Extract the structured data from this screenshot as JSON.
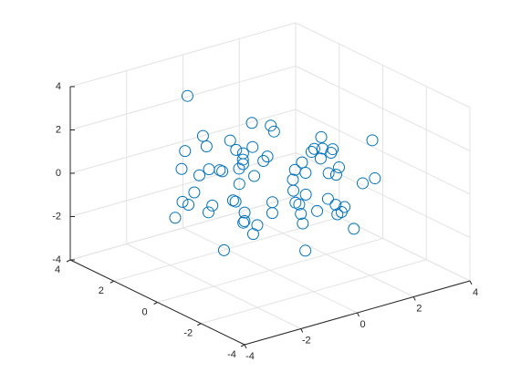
{
  "chart_data": {
    "type": "scatter3d",
    "color": "#0072bd",
    "grid": true,
    "x": [
      0.5,
      -1.2,
      1.8,
      -0.3,
      0.9,
      -2.1,
      0.2,
      1.4,
      -0.8,
      2.6,
      -1.7,
      0.0,
      1.1,
      -0.5,
      -2.8,
      0.7,
      1.9,
      -1.0,
      0.3,
      -0.2,
      2.2,
      -1.4,
      0.6,
      -2.4,
      1.3,
      -0.7,
      0.1,
      3.1,
      -1.9,
      0.8,
      -0.1,
      1.6,
      -1.1,
      2.9,
      -0.4,
      0.4,
      -2.6,
      1.0,
      -0.9,
      1.5,
      -1.5,
      0.2,
      2.4,
      -0.6,
      -3.0,
      1.2,
      -0.2,
      0.7,
      -1.3,
      2.0,
      -0.8,
      0.3,
      1.7,
      -2.2,
      0.5,
      -0.3,
      1.0,
      -1.6,
      2.7,
      -0.1,
      0.9,
      -1.8,
      0.4,
      1.3,
      -0.6,
      -2.0,
      1.8,
      -1.0,
      0.0,
      2.3
    ],
    "y": [
      -0.4,
      1.1,
      0.3,
      -1.8,
      2.0,
      -0.6,
      1.5,
      -1.2,
      0.8,
      0.2,
      -2.3,
      1.7,
      -0.9,
      2.6,
      0.4,
      -1.5,
      -0.2,
      0.9,
      -2.7,
      1.3,
      -1.0,
      0.5,
      2.2,
      -0.3,
      -1.6,
      3.0,
      0.1,
      -0.8,
      1.9,
      -2.0,
      0.6,
      1.0,
      -1.3,
      -0.5,
      2.4,
      -1.1,
      0.7,
      1.6,
      -2.5,
      0.3,
      -0.7,
      -1.9,
      1.2,
      0.0,
      -0.4,
      2.8,
      -1.4,
      0.8,
      1.4,
      -0.1,
      -2.2,
      1.8,
      -0.6,
      0.9,
      -1.7,
      0.2,
      2.1,
      -0.9,
      -1.2,
      1.1,
      -0.3,
      0.5,
      -2.9,
      1.5,
      0.4,
      -1.0,
      0.7,
      2.5,
      -1.5,
      0.1
    ],
    "z": [
      0.2,
      -1.1,
      0.8,
      -0.4,
      1.5,
      -2.0,
      0.6,
      -0.9,
      1.9,
      -0.3,
      0.4,
      -1.6,
      1.2,
      -0.7,
      0.0,
      2.1,
      -1.3,
      0.5,
      -0.2,
      1.0,
      -2.4,
      0.9,
      -0.6,
      1.7,
      -1.0,
      0.3,
      2.6,
      -0.5,
      -1.8,
      1.1,
      0.1,
      -1.4,
      2.3,
      -0.8,
      0.7,
      -2.7,
      1.3,
      -0.1,
      0.6,
      -1.2,
      1.8,
      -0.4,
      0.0,
      -2.1,
      0.9,
      -0.7,
      1.4,
      -1.5,
      2.0,
      -0.2,
      0.5,
      -1.0,
      1.1,
      -0.6,
      2.8,
      -1.9,
      0.3,
      -0.3,
      1.6,
      -2.3,
      0.8,
      -0.9,
      0.2,
      1.2,
      -1.7,
      0.4,
      -0.5,
      3.2,
      -1.1,
      0.7
    ],
    "xlim": [
      -4,
      4
    ],
    "ylim": [
      -4,
      4
    ],
    "zlim": [
      -4,
      4
    ],
    "xticks": [
      -4,
      -2,
      0,
      2,
      4
    ],
    "yticks": [
      -4,
      -2,
      0,
      2,
      4
    ],
    "zticks": [
      -4,
      -2,
      0,
      2,
      4
    ]
  }
}
